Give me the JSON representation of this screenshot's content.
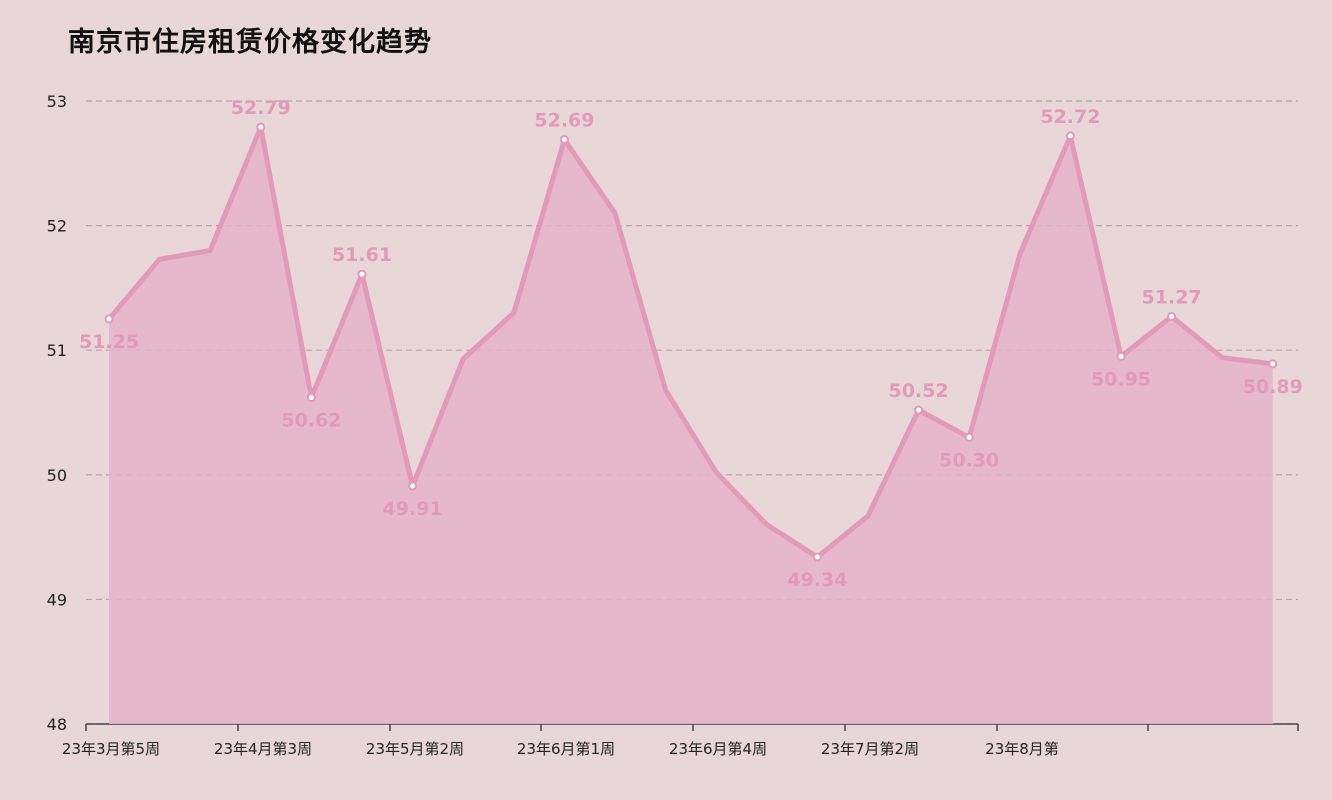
{
  "chart_data": {
    "type": "area",
    "title": "南京市住房租赁价格变化趋势",
    "xlabel": "",
    "ylabel": "",
    "ylim": [
      48,
      53
    ],
    "yticks": [
      48,
      49,
      50,
      51,
      52,
      53
    ],
    "grid": true,
    "line_color": "#e39ab9",
    "fill_color": "#e5b3c8",
    "x_tick_labels": [
      "23年3月第5周",
      "23年4月第3周",
      "23年5月第2周",
      "23年6月第1周",
      "23年6月第4周",
      "23年7月第2周",
      "23年8月第"
    ],
    "series": [
      {
        "values": [
          51.25,
          51.73,
          51.8,
          52.79,
          50.62,
          51.61,
          49.91,
          50.93,
          51.3,
          52.69,
          52.1,
          50.68,
          50.02,
          49.6,
          49.34,
          49.67,
          50.52,
          50.3,
          51.77,
          52.72,
          50.95,
          51.27,
          50.94,
          50.89
        ]
      }
    ],
    "data_labels": [
      {
        "index": 0,
        "text": "51.25"
      },
      {
        "index": 3,
        "text": "52.79"
      },
      {
        "index": 4,
        "text": "50.62"
      },
      {
        "index": 5,
        "text": "51.61"
      },
      {
        "index": 6,
        "text": "49.91"
      },
      {
        "index": 9,
        "text": "52.69"
      },
      {
        "index": 14,
        "text": "49.34"
      },
      {
        "index": 16,
        "text": "50.52"
      },
      {
        "index": 17,
        "text": "50.30"
      },
      {
        "index": 19,
        "text": "52.72"
      },
      {
        "index": 20,
        "text": "50.95"
      },
      {
        "index": 21,
        "text": "51.27"
      },
      {
        "index": 23,
        "text": "50.89"
      }
    ]
  }
}
